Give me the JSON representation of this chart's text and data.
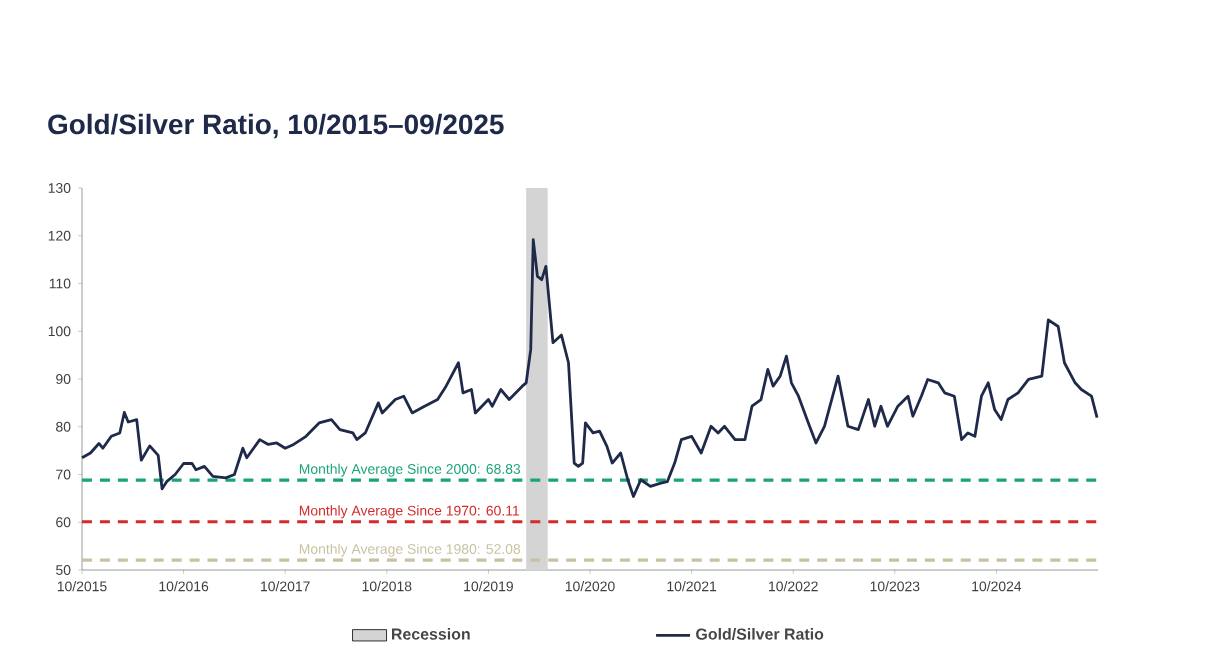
{
  "chart_data": {
    "type": "line",
    "title": "Gold/Silver Ratio, 10/2015–09/2025",
    "xlim": [
      "2015-10",
      "2025-10"
    ],
    "xticks": [
      {
        "value": "2015-10",
        "label": "10/2015"
      },
      {
        "value": "2016-10",
        "label": "10/2016"
      },
      {
        "value": "2017-10",
        "label": "10/2017"
      },
      {
        "value": "2018-10",
        "label": "10/2018"
      },
      {
        "value": "2019-10",
        "label": "10/2019"
      },
      {
        "value": "2020-10",
        "label": "10/2020"
      },
      {
        "value": "2021-10",
        "label": "10/2021"
      },
      {
        "value": "2022-10",
        "label": "10/2022"
      },
      {
        "value": "2023-10",
        "label": "10/2023"
      },
      {
        "value": "2024-10",
        "label": "10/2024"
      }
    ],
    "ylim": [
      50,
      130
    ],
    "yticks": [
      50,
      60,
      70,
      80,
      90,
      100,
      110,
      120,
      130
    ],
    "legend": "bottom",
    "grid": false,
    "marker": "none",
    "line_style": "solid",
    "series": [
      {
        "name": "Gold/Silver Ratio",
        "color": "#1f2a4a",
        "x": [
          "2015-10-01",
          "2015-11-01",
          "2015-12-01",
          "2015-12-15",
          "2016-01-15",
          "2016-02-15",
          "2016-03-01",
          "2016-03-15",
          "2016-04-15",
          "2016-05-01",
          "2016-06-01",
          "2016-07-01",
          "2016-07-15",
          "2016-08-01",
          "2016-09-01",
          "2016-10-01",
          "2016-11-01",
          "2016-11-15",
          "2016-12-15",
          "2017-01-15",
          "2017-03-01",
          "2017-04-01",
          "2017-05-01",
          "2017-05-15",
          "2017-07-01",
          "2017-08-01",
          "2017-09-01",
          "2017-10-01",
          "2017-11-01",
          "2017-12-15",
          "2018-02-01",
          "2018-03-15",
          "2018-04-15",
          "2018-06-01",
          "2018-06-15",
          "2018-07-15",
          "2018-09-01",
          "2018-09-15",
          "2018-11-01",
          "2018-12-01",
          "2019-01-01",
          "2019-02-15",
          "2019-04-01",
          "2019-05-01",
          "2019-06-15",
          "2019-07-01",
          "2019-08-01",
          "2019-08-15",
          "2019-10-01",
          "2019-10-15",
          "2019-11-15",
          "2019-12-15",
          "2020-02-01",
          "2020-02-15",
          "2020-03-01",
          "2020-03-10",
          "2020-03-25",
          "2020-04-10",
          "2020-04-25",
          "2020-05-20",
          "2020-06-20",
          "2020-07-15",
          "2020-08-05",
          "2020-08-20",
          "2020-09-05",
          "2020-09-15",
          "2020-10-12",
          "2020-11-05",
          "2020-12-01",
          "2020-12-20",
          "2021-01-20",
          "2021-02-15",
          "2021-03-05",
          "2021-04-01",
          "2021-05-05",
          "2021-06-12",
          "2021-07-05",
          "2021-08-01",
          "2021-08-25",
          "2021-10-01",
          "2021-11-05",
          "2021-12-10",
          "2022-01-05",
          "2022-01-28",
          "2022-03-05",
          "2022-04-10",
          "2022-05-05",
          "2022-06-07",
          "2022-07-01",
          "2022-07-20",
          "2022-08-15",
          "2022-09-07",
          "2022-09-25",
          "2022-10-20",
          "2022-11-25",
          "2022-12-22",
          "2023-01-22",
          "2023-03-10",
          "2023-04-15",
          "2023-05-22",
          "2023-06-28",
          "2023-07-20",
          "2023-08-12",
          "2023-09-05",
          "2023-10-12",
          "2023-11-18",
          "2023-12-05",
          "2024-01-05",
          "2024-01-28",
          "2024-03-05",
          "2024-03-28",
          "2024-05-02",
          "2024-05-28",
          "2024-06-20",
          "2024-07-15",
          "2024-08-08",
          "2024-09-02",
          "2024-09-25",
          "2024-10-18",
          "2024-11-12",
          "2024-12-18",
          "2025-01-25",
          "2025-03-12",
          "2025-04-05",
          "2025-05-10",
          "2025-06-02",
          "2025-07-10",
          "2025-08-02",
          "2025-09-08",
          "2025-09-28"
        ],
        "values": [
          73.5,
          74.5,
          76.5,
          75.5,
          78,
          78.7,
          83,
          81,
          81.5,
          73,
          76,
          74,
          67,
          68.5,
          70,
          72.3,
          72.3,
          71,
          71.7,
          69.6,
          69.3,
          70,
          75.5,
          73.5,
          77.3,
          76.3,
          76.6,
          75.5,
          76.3,
          78,
          80.8,
          81.5,
          79.4,
          78.7,
          77.3,
          78.7,
          85,
          82.9,
          85.7,
          86.4,
          82.9,
          84.3,
          85.7,
          88.5,
          93.4,
          87.1,
          87.8,
          82.9,
          85.7,
          84.3,
          87.8,
          85.7,
          88.5,
          89.2,
          96.2,
          119.2,
          111.5,
          110.8,
          113.6,
          97.6,
          99.2,
          93.4,
          72.4,
          71.7,
          72.4,
          80.8,
          78.7,
          79.1,
          75.9,
          72.4,
          74.5,
          68.9,
          65.4,
          68.9,
          67.5,
          68.2,
          68.5,
          72.4,
          77.3,
          78,
          74.5,
          80.1,
          78.7,
          80.1,
          77.3,
          77.3,
          84.3,
          85.7,
          92,
          88.5,
          90.6,
          94.8,
          89.2,
          86.4,
          80.8,
          76.6,
          80.1,
          90.6,
          80.1,
          79.4,
          85.7,
          80.1,
          84.3,
          80.1,
          84.3,
          86.4,
          82.2,
          86.4,
          89.9,
          89.2,
          87.1,
          86.4,
          77.3,
          78.7,
          78,
          86.4,
          89.2,
          83.6,
          81.5,
          85.7,
          87.1,
          89.9,
          90.6,
          102.4,
          101,
          93.4,
          89.2,
          87.8,
          86.4,
          81.9
        ]
      }
    ],
    "ref_lines": [
      {
        "axis": "y",
        "value": 68.83,
        "label": "Monthly Average Since 2000: 68.83",
        "color": "#1aa37a",
        "line_style": "dashed"
      },
      {
        "axis": "y",
        "value": 60.11,
        "label": "Monthly Average Since 1970: 60.11",
        "color": "#d42a2a",
        "line_style": "dashed"
      },
      {
        "axis": "y",
        "value": 52.08,
        "label": "Monthly Average Since 1980: 52.08",
        "color": "#c9c1a0",
        "line_style": "dashed"
      }
    ],
    "bands": [
      {
        "axis": "x",
        "from": "2020-02-15",
        "to": "2020-05-01",
        "label": "Recession",
        "color": "#d4d4d4"
      }
    ]
  }
}
